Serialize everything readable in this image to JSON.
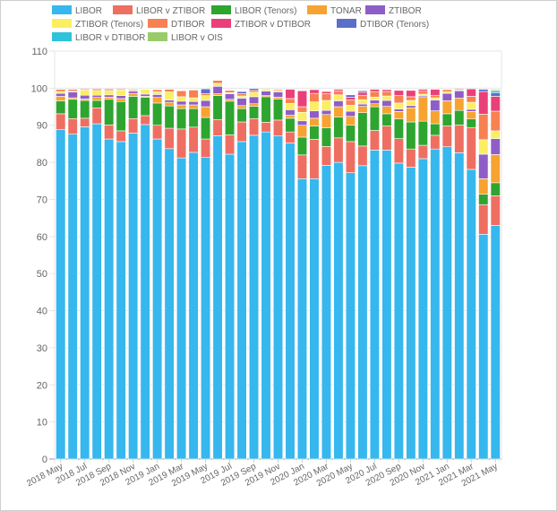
{
  "chart_data": {
    "type": "bar",
    "stacked": true,
    "title": "",
    "xlabel": "",
    "ylabel": "",
    "ylim": [
      0,
      110
    ],
    "yticks": [
      0,
      10,
      20,
      30,
      40,
      50,
      60,
      70,
      80,
      90,
      100,
      110
    ],
    "grid": true,
    "legend_position": "top-left",
    "categories": [
      "2018 May",
      "2018 Jun",
      "2018 Jul",
      "2018 Aug",
      "2018 Sep",
      "2018 Oct",
      "2018 Nov",
      "2018 Dec",
      "2019 Jan",
      "2019 Feb",
      "2019 Mar",
      "2019 Apr",
      "2019 May",
      "2019 Jun",
      "2019 Jul",
      "2019 Aug",
      "2019 Sep",
      "2019 Oct",
      "2019 Nov",
      "2019 Dec",
      "2020 Jan",
      "2020 Feb",
      "2020 Mar",
      "2020 Apr",
      "2020 May",
      "2020 Jun",
      "2020 Jul",
      "2020 Aug",
      "2020 Sep",
      "2020 Oct",
      "2020 Nov",
      "2020 Dec",
      "2021 Jan",
      "2021 Feb",
      "2021 Mar",
      "2021 Apr",
      "2021 May"
    ],
    "xtick_labels": [
      "2018 May",
      "2018 Jul",
      "2018 Sep",
      "2018 Nov",
      "2019 Jan",
      "2019 Mar",
      "2019 May",
      "2019 Jul",
      "2019 Sep",
      "2019 Nov",
      "2020 Jan",
      "2020 Mar",
      "2020 May",
      "2020 Jul",
      "2020 Sep",
      "2020 Nov",
      "2021 Jan",
      "2021 Mar",
      "2021 May"
    ],
    "series": [
      {
        "name": "LIBOR",
        "color": "#36b7ee",
        "values": [
          88.8,
          87.6,
          89.6,
          90.4,
          86.3,
          85.6,
          87.9,
          90.2,
          86.3,
          83.7,
          81.2,
          82.7,
          81.3,
          87.2,
          82.2,
          85.6,
          87.3,
          88.2,
          87.1,
          85.2,
          75.6,
          75.6,
          79.2,
          80.0,
          77.2,
          79.1,
          83.3,
          83.3,
          79.8,
          78.7,
          81.0,
          83.6,
          84.2,
          82.6,
          78.1,
          60.6,
          63.0
        ]
      },
      {
        "name": "LIBOR v ZTIBOR",
        "color": "#ef6e62",
        "values": [
          4.3,
          4.2,
          2.3,
          4.3,
          3.8,
          2.9,
          3.9,
          2.4,
          3.7,
          5.5,
          7.8,
          6.8,
          5.0,
          4.3,
          5.2,
          5.3,
          4.5,
          2.6,
          4.3,
          3.0,
          6.4,
          10.6,
          5.1,
          6.6,
          8.4,
          5.3,
          5.3,
          6.5,
          6.6,
          4.9,
          3.6,
          3.7,
          5.6,
          7.5,
          11.3,
          8.0,
          8.0
        ]
      },
      {
        "name": "LIBOR (Tenors)",
        "color": "#2ea52f",
        "values": [
          3.5,
          5.2,
          4.8,
          2.0,
          6.9,
          7.9,
          6.0,
          4.9,
          6.0,
          6.0,
          5.5,
          5.0,
          5.8,
          6.5,
          9.1,
          3.6,
          3.3,
          6.9,
          5.7,
          3.7,
          4.8,
          3.6,
          5.0,
          5.6,
          4.4,
          9.0,
          6.4,
          3.3,
          5.3,
          7.3,
          6.5,
          3.1,
          3.3,
          3.9,
          2.3,
          2.8,
          3.5
        ]
      },
      {
        "name": "TONAR",
        "color": "#f7a331",
        "values": [
          1.2,
          0.4,
          0.4,
          0.8,
          0.6,
          0.8,
          0.8,
          0.3,
          1.5,
          1.0,
          1.0,
          1.0,
          2.9,
          0.5,
          0.5,
          0.8,
          0.7,
          0.3,
          0.5,
          0.8,
          3.2,
          2.1,
          3.6,
          2.8,
          2.4,
          1.7,
          0.8,
          2.0,
          2.0,
          3.8,
          6.4,
          3.5,
          3.5,
          3.3,
          2.0,
          4.2,
          7.6
        ]
      },
      {
        "name": "ZTIBOR",
        "color": "#8e5ec8",
        "values": [
          0.8,
          1.6,
          1.0,
          0.6,
          0.6,
          0.8,
          0.6,
          0.6,
          0.8,
          0.6,
          1.0,
          0.9,
          1.7,
          2.0,
          1.5,
          2.0,
          1.9,
          1.2,
          1.4,
          1.5,
          1.2,
          2.0,
          1.1,
          1.6,
          1.4,
          0.6,
          1.0,
          1.6,
          0.7,
          0.6,
          0.4,
          2.9,
          2.0,
          2.0,
          0.6,
          6.6,
          4.3
        ]
      },
      {
        "name": "ZTIBOR (Tenors)",
        "color": "#fbee63",
        "values": [
          0.5,
          0.2,
          1.4,
          1.3,
          1.2,
          1.5,
          0.2,
          1.3,
          0.7,
          2.2,
          1.2,
          1.0,
          1.3,
          0.8,
          0.3,
          0.6,
          1.2,
          0.4,
          0.4,
          1.7,
          2.3,
          2.4,
          2.7,
          1.6,
          1.6,
          1.2,
          0.8,
          1.2,
          1.6,
          1.4,
          0.5,
          0.6,
          0.4,
          0.2,
          1.9,
          3.9,
          2.1
        ]
      },
      {
        "name": "DTIBOR",
        "color": "#f78152",
        "values": [
          0.6,
          0.5,
          0.3,
          0.4,
          0.4,
          0.3,
          0.3,
          0.1,
          0.6,
          0.7,
          1.6,
          2.1,
          0.5,
          0.8,
          0.6,
          0.6,
          0.5,
          0.2,
          0.3,
          1.3,
          1.5,
          2.3,
          1.8,
          1.1,
          1.4,
          1.2,
          1.5,
          1.2,
          2.0,
          1.0,
          0.8,
          0.6,
          0.6,
          0.3,
          1.6,
          6.9,
          5.3
        ]
      },
      {
        "name": "ZTIBOR v DTIBOR",
        "color": "#ea4079",
        "values": [
          0.1,
          0.0,
          0.0,
          0.0,
          0.0,
          0.0,
          0.0,
          0.0,
          0.0,
          0.0,
          0.0,
          0.0,
          0.0,
          0.0,
          0.0,
          0.0,
          0.0,
          0.0,
          0.0,
          2.5,
          4.3,
          1.0,
          0.6,
          0.4,
          0.8,
          0.8,
          0.6,
          0.5,
          1.4,
          1.7,
          0.5,
          1.7,
          0.0,
          0.0,
          2.0,
          6.1,
          4.0
        ]
      },
      {
        "name": "DTIBOR (Tenors)",
        "color": "#5b6fca",
        "values": [
          0.0,
          0.0,
          0.0,
          0.0,
          0.0,
          0.0,
          0.0,
          0.0,
          0.0,
          0.0,
          0.0,
          0.0,
          1.3,
          0.0,
          0.0,
          0.6,
          0.5,
          0.0,
          0.0,
          0.0,
          0.0,
          0.0,
          0.0,
          0.0,
          0.6,
          0.4,
          0.0,
          0.0,
          0.0,
          0.0,
          0.0,
          0.0,
          0.0,
          0.0,
          0.0,
          0.6,
          1.0
        ]
      },
      {
        "name": "LIBOR v DTIBOR",
        "color": "#2ec3d9",
        "values": [
          0.0,
          0.0,
          0.0,
          0.0,
          0.0,
          0.0,
          0.0,
          0.0,
          0.0,
          0.0,
          0.0,
          0.0,
          0.0,
          0.0,
          0.0,
          0.0,
          0.0,
          0.0,
          0.0,
          0.0,
          0.0,
          0.0,
          0.0,
          0.0,
          0.0,
          0.0,
          0.0,
          0.0,
          0.0,
          0.0,
          0.0,
          0.0,
          0.0,
          0.0,
          0.0,
          0.0,
          0.5
        ]
      },
      {
        "name": "LIBOR v OIS",
        "color": "#9acb6a",
        "values": [
          0.0,
          0.0,
          0.0,
          0.0,
          0.0,
          0.0,
          0.0,
          0.0,
          0.0,
          0.0,
          0.0,
          0.0,
          0.0,
          0.0,
          0.0,
          0.0,
          0.0,
          0.0,
          0.0,
          0.0,
          0.0,
          0.0,
          0.0,
          0.0,
          0.0,
          0.0,
          0.0,
          0.0,
          0.0,
          0.0,
          0.0,
          0.0,
          0.0,
          0.0,
          0.0,
          0.0,
          0.3
        ]
      }
    ]
  }
}
